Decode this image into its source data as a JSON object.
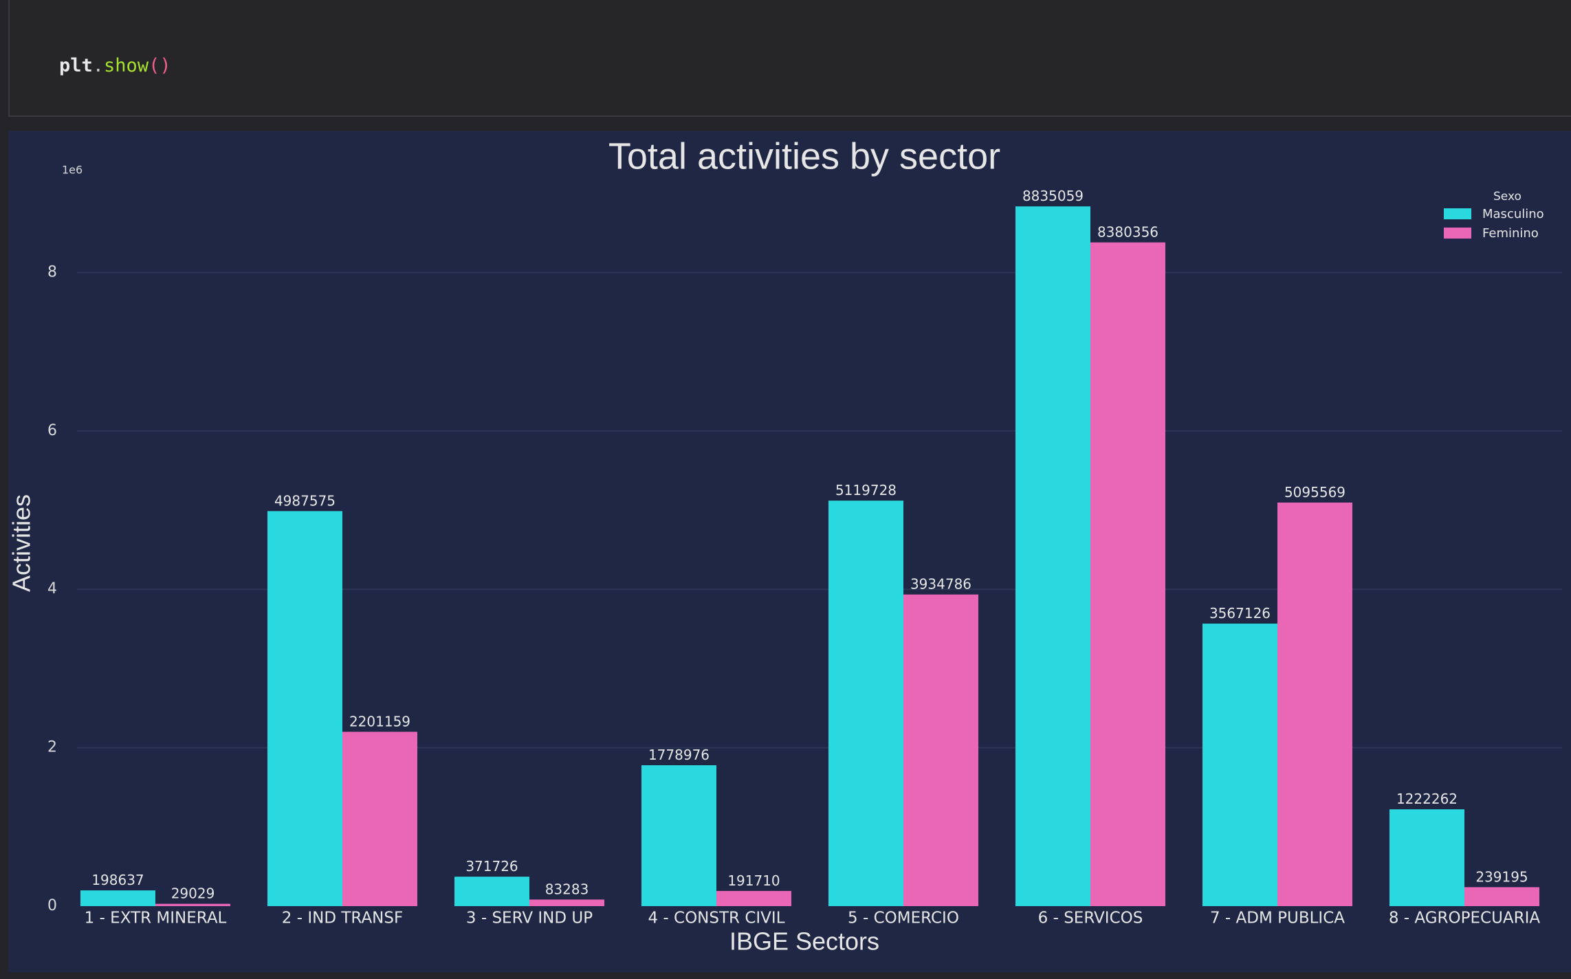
{
  "code_cell": {
    "object": "plt",
    "dot": ".",
    "method": "show",
    "parens": "()"
  },
  "colors": {
    "page_background": "#252428",
    "plot_background": "#1f2744",
    "masculino": "#2ad8df",
    "feminino": "#e967b5",
    "text": "#e6e6e6",
    "grid": "#2c3553"
  },
  "chart_data": {
    "type": "bar",
    "title": "Total activities by sector",
    "xlabel": "IBGE Sectors",
    "ylabel": "Activities",
    "y_scale_label": "1e6",
    "ylim": [
      0,
      9200000
    ],
    "y_ticks": [
      0,
      2,
      4,
      6,
      8
    ],
    "grid": true,
    "legend": {
      "title": "Sexo",
      "placement": "top-right"
    },
    "categories": [
      "1 - EXTR MINERAL",
      "2 - IND TRANSF",
      "3 - SERV IND UP",
      "4 - CONSTR CIVIL",
      "5 - COMERCIO",
      "6 - SERVICOS",
      "7 - ADM PUBLICA",
      "8 - AGROPECUARIA"
    ],
    "series": [
      {
        "name": "Masculino",
        "color": "#2ad8df",
        "values": [
          198637,
          4987575,
          371726,
          1778976,
          5119728,
          8835059,
          3567126,
          1222262
        ]
      },
      {
        "name": "Feminino",
        "color": "#e967b5",
        "values": [
          29029,
          2201159,
          83283,
          191710,
          3934786,
          8380356,
          5095569,
          239195
        ]
      }
    ]
  }
}
